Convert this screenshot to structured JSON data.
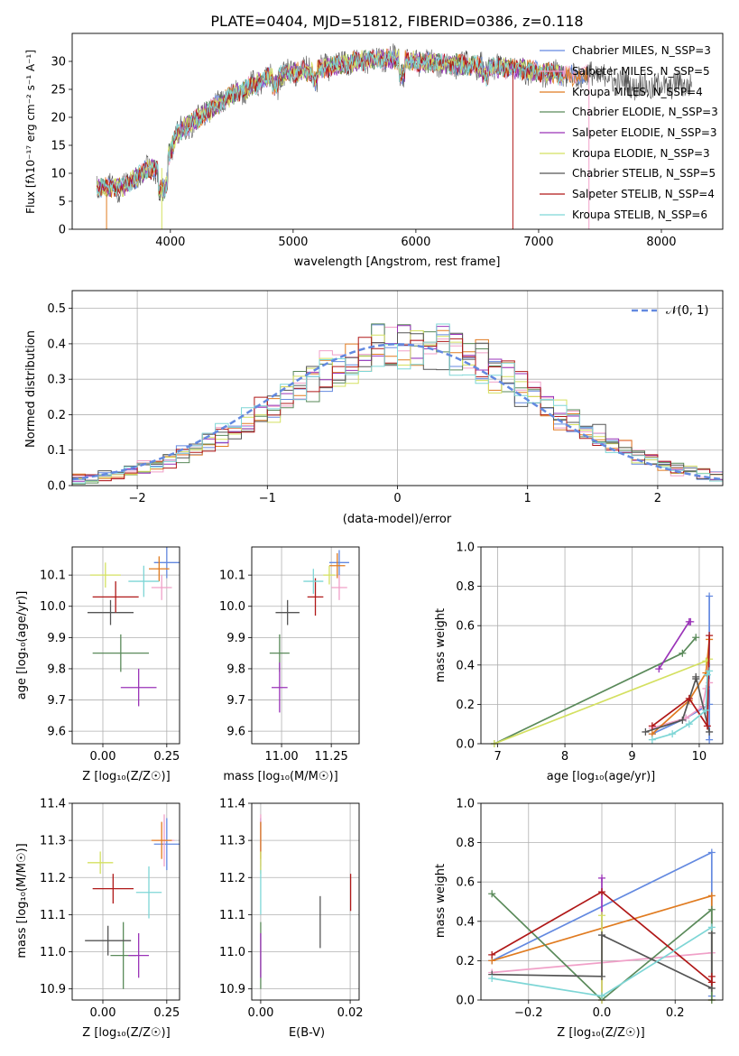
{
  "colors": [
    "#6389e0",
    "#f0a0c8",
    "#e07b20",
    "#5a8a5a",
    "#9a33b8",
    "#d4e060",
    "#555555",
    "#b01818",
    "#7ed6d6"
  ],
  "labels": {
    "title": "PLATE=0404, MJD=51812, FIBERID=0386, z=0.118",
    "spec_xlabel": "wavelength [Angstrom, rest frame]",
    "spec_ylabel": "Flux [fλ10⁻¹⁷ erg cm⁻² s⁻¹ A⁻¹]",
    "res_xlabel": "(data-model)/error",
    "res_ylabel": "Normed distribution",
    "res_legend": "𝒩(0, 1)",
    "age_ylabel": "age  [log₁₀(age/yr)]",
    "z_xlabel": "Z [log₁₀(Z/Z☉)]",
    "mass_xlabel": "mass [log₁₀(M/M☉)]",
    "mass_ylabel": "mass [log₁₀(M/M☉)]",
    "ebv_xlabel": "E(B-V)",
    "mw_ylabel": "mass weight",
    "age_xlabel": "age  [log₁₀(age/yr)]"
  },
  "legend": [
    "Chabrier MILES, N_SSP=3",
    "Salpeter MILES, N_SSP=5",
    "Kroupa MILES, N_SSP=4",
    "Chabrier ELODIE, N_SSP=3",
    "Salpeter ELODIE, N_SSP=3",
    "Kroupa ELODIE, N_SSP=3",
    "Chabrier STELIB, N_SSP=5",
    "Salpeter STELIB, N_SSP=4",
    "Kroupa STELIB, N_SSP=6"
  ],
  "chart_data": [
    {
      "type": "line",
      "panel": "spectrum",
      "title": "PLATE=0404, MJD=51812, FIBERID=0386, z=0.118",
      "xlim": [
        3200,
        8500
      ],
      "ylim": [
        0,
        35
      ],
      "xticks": [
        4000,
        5000,
        6000,
        7000,
        8000
      ],
      "yticks": [
        0,
        5,
        10,
        15,
        20,
        25,
        30
      ],
      "continuum_x": [
        3400,
        3600,
        3800,
        3950,
        4050,
        4300,
        4500,
        4800,
        5000,
        5200,
        5500,
        5800,
        6000,
        6300,
        6600,
        6900,
        7200,
        7500,
        7800,
        8000,
        8250
      ],
      "continuum_y": [
        7.5,
        7.5,
        10.5,
        11,
        17,
        21,
        24,
        27,
        28,
        28.5,
        30,
        30.5,
        30,
        29.5,
        29,
        28.5,
        27.5,
        27.5,
        25.5,
        25.5,
        26
      ],
      "grid": false,
      "legend_position": "right"
    },
    {
      "type": "bar",
      "panel": "residuals",
      "xlim": [
        -2.5,
        2.5
      ],
      "ylim": [
        0,
        0.55
      ],
      "xticks": [
        -2,
        -1,
        0,
        1,
        2
      ],
      "yticks": [
        0.0,
        0.1,
        0.2,
        0.3,
        0.4,
        0.5
      ],
      "bin_width": 0.1,
      "grid": true,
      "legend_position": "top-right"
    },
    {
      "type": "scatter",
      "panel": "age_vs_Z",
      "xlim": [
        -0.12,
        0.3
      ],
      "ylim": [
        9.56,
        10.19
      ],
      "xticks": [
        0.0,
        0.25
      ],
      "yticks": [
        9.6,
        9.7,
        9.8,
        9.9,
        10.0,
        10.1
      ],
      "points": [
        {
          "x": 0.25,
          "y": 10.14,
          "xerr": 0.05,
          "yerr": 0.05
        },
        {
          "x": 0.23,
          "y": 10.06,
          "xerr": 0.04,
          "yerr": 0.04
        },
        {
          "x": 0.22,
          "y": 10.12,
          "xerr": 0.04,
          "yerr": 0.04
        },
        {
          "x": 0.07,
          "y": 9.85,
          "xerr": 0.11,
          "yerr": 0.06
        },
        {
          "x": 0.14,
          "y": 9.74,
          "xerr": 0.07,
          "yerr": 0.06
        },
        {
          "x": 0.01,
          "y": 10.1,
          "xerr": 0.06,
          "yerr": 0.04
        },
        {
          "x": 0.03,
          "y": 9.98,
          "xerr": 0.09,
          "yerr": 0.04
        },
        {
          "x": 0.05,
          "y": 10.03,
          "xerr": 0.09,
          "yerr": 0.05
        },
        {
          "x": 0.16,
          "y": 10.08,
          "xerr": 0.06,
          "yerr": 0.05
        }
      ],
      "grid": true
    },
    {
      "type": "scatter",
      "panel": "age_vs_mass",
      "xlim": [
        10.85,
        11.39
      ],
      "ylim": [
        9.56,
        10.19
      ],
      "xticks": [
        11.0,
        11.25
      ],
      "yticks": [
        9.6,
        9.7,
        9.8,
        9.9,
        10.0,
        10.1
      ],
      "points": [
        {
          "x": 11.29,
          "y": 10.14,
          "xerr": 0.05,
          "yerr": 0.04
        },
        {
          "x": 11.29,
          "y": 10.06,
          "xerr": 0.04,
          "yerr": 0.04
        },
        {
          "x": 11.28,
          "y": 10.13,
          "xerr": 0.04,
          "yerr": 0.04
        },
        {
          "x": 10.99,
          "y": 9.85,
          "xerr": 0.05,
          "yerr": 0.06
        },
        {
          "x": 10.99,
          "y": 9.74,
          "xerr": 0.04,
          "yerr": 0.08
        },
        {
          "x": 11.24,
          "y": 10.1,
          "xerr": 0.03,
          "yerr": 0.03
        },
        {
          "x": 11.03,
          "y": 9.98,
          "xerr": 0.06,
          "yerr": 0.04
        },
        {
          "x": 11.17,
          "y": 10.03,
          "xerr": 0.04,
          "yerr": 0.06
        },
        {
          "x": 11.16,
          "y": 10.08,
          "xerr": 0.05,
          "yerr": 0.04
        }
      ],
      "grid": true
    },
    {
      "type": "line",
      "panel": "massweight_vs_age",
      "xlim": [
        6.75,
        10.35
      ],
      "ylim": [
        0,
        1
      ],
      "xticks": [
        7,
        8,
        9,
        10
      ],
      "yticks": [
        0.0,
        0.2,
        0.4,
        0.6,
        0.8,
        1.0
      ],
      "series": [
        {
          "x": [
            9.3,
            9.8,
            10.15,
            10.15,
            10.15
          ],
          "y": [
            0.05,
            0.13,
            0.2,
            0.75,
            0.02
          ]
        },
        {
          "x": [
            9.3,
            9.8,
            10.05,
            10.1,
            10.15
          ],
          "y": [
            0.08,
            0.13,
            0.19,
            0.28,
            0.31
          ]
        },
        {
          "x": [
            9.3,
            9.85,
            10.1,
            10.15
          ],
          "y": [
            0.05,
            0.22,
            0.36,
            0.53
          ]
        },
        {
          "x": [
            6.95,
            9.75,
            9.95
          ],
          "y": [
            0.0,
            0.46,
            0.54
          ]
        },
        {
          "x": [
            9.4,
            9.85,
            9.87
          ],
          "y": [
            0.38,
            0.62,
            0.62
          ]
        },
        {
          "x": [
            6.95,
            10.1,
            10.15
          ],
          "y": [
            0.0,
            0.42,
            0.43
          ]
        },
        {
          "x": [
            9.2,
            9.75,
            9.95,
            9.95,
            10.15
          ],
          "y": [
            0.06,
            0.12,
            0.33,
            0.34,
            0.06
          ]
        },
        {
          "x": [
            9.3,
            9.85,
            10.12,
            10.15
          ],
          "y": [
            0.09,
            0.23,
            0.09,
            0.55
          ]
        },
        {
          "x": [
            9.3,
            9.6,
            9.85,
            10.1,
            10.12,
            10.15
          ],
          "y": [
            0.02,
            0.05,
            0.1,
            0.17,
            0.35,
            0.37
          ]
        }
      ],
      "grid": true
    },
    {
      "type": "scatter",
      "panel": "mass_vs_Z",
      "xlim": [
        -0.12,
        0.3
      ],
      "ylim": [
        10.87,
        11.4
      ],
      "xticks": [
        0.0,
        0.25
      ],
      "yticks": [
        10.9,
        11.0,
        11.1,
        11.2,
        11.3,
        11.4
      ],
      "points": [
        {
          "x": 0.25,
          "y": 11.29,
          "xerr": 0.05,
          "yerr": 0.07
        },
        {
          "x": 0.24,
          "y": 11.3,
          "xerr": 0.04,
          "yerr": 0.07
        },
        {
          "x": 0.23,
          "y": 11.3,
          "xerr": 0.04,
          "yerr": 0.05
        },
        {
          "x": 0.08,
          "y": 10.99,
          "xerr": 0.05,
          "yerr": 0.09
        },
        {
          "x": 0.14,
          "y": 10.99,
          "xerr": 0.04,
          "yerr": 0.06
        },
        {
          "x": -0.01,
          "y": 11.24,
          "xerr": 0.05,
          "yerr": 0.03
        },
        {
          "x": 0.02,
          "y": 11.03,
          "xerr": 0.09,
          "yerr": 0.04
        },
        {
          "x": 0.04,
          "y": 11.17,
          "xerr": 0.08,
          "yerr": 0.04
        },
        {
          "x": 0.18,
          "y": 11.16,
          "xerr": 0.05,
          "yerr": 0.07
        }
      ],
      "grid": true
    },
    {
      "type": "scatter",
      "panel": "mass_vs_EBV",
      "xlim": [
        -0.002,
        0.022
      ],
      "ylim": [
        10.87,
        11.4
      ],
      "xticks": [
        0.0,
        0.02
      ],
      "yticks": [
        10.9,
        11.0,
        11.1,
        11.2,
        11.3,
        11.4
      ],
      "points": [
        {
          "x": 0.0,
          "y": 11.29,
          "yerr": 0.07
        },
        {
          "x": 0.0,
          "y": 11.3,
          "yerr": 0.07
        },
        {
          "x": 0.0,
          "y": 11.3,
          "yerr": 0.05
        },
        {
          "x": 0.0,
          "y": 10.99,
          "yerr": 0.09
        },
        {
          "x": 0.0,
          "y": 10.99,
          "yerr": 0.06
        },
        {
          "x": 0.0,
          "y": 11.24,
          "yerr": 0.03
        },
        {
          "x": 0.0133,
          "y": 11.08,
          "yerr": 0.07
        },
        {
          "x": 0.0201,
          "y": 11.16,
          "yerr": 0.05
        },
        {
          "x": 0.0,
          "y": 11.16,
          "yerr": 0.06
        }
      ],
      "grid": true
    },
    {
      "type": "line",
      "panel": "massweight_vs_Z",
      "xlim": [
        -0.33,
        0.33
      ],
      "ylim": [
        0,
        1
      ],
      "xticks": [
        -0.2,
        0.0,
        0.2
      ],
      "yticks": [
        0.0,
        0.2,
        0.4,
        0.6,
        0.8,
        1.0
      ],
      "series": [
        {
          "x": [
            -0.3,
            0.3,
            0.3
          ],
          "y": [
            0.2,
            0.75,
            0.02
          ]
        },
        {
          "x": [
            -0.3,
            0.3
          ],
          "y": [
            0.14,
            0.24
          ]
        },
        {
          "x": [
            -0.3,
            0.3,
            0.3
          ],
          "y": [
            0.2,
            0.53,
            0.0
          ]
        },
        {
          "x": [
            -0.3,
            0.0,
            0.3,
            0.3
          ],
          "y": [
            0.54,
            0.0,
            0.46,
            0.0
          ]
        },
        {
          "x": [
            0.0,
            0.0
          ],
          "y": [
            0.0,
            0.62
          ]
        },
        {
          "x": [
            0.0,
            0.0
          ],
          "y": [
            0.0,
            0.43
          ]
        },
        {
          "x": [
            -0.3,
            0.0,
            0.0,
            0.3,
            0.3
          ],
          "y": [
            0.13,
            0.12,
            0.33,
            0.06,
            0.34
          ]
        },
        {
          "x": [
            -0.3,
            0.0,
            0.3,
            0.3
          ],
          "y": [
            0.23,
            0.55,
            0.09,
            0.12
          ]
        },
        {
          "x": [
            -0.3,
            0.0,
            0.3
          ],
          "y": [
            0.11,
            0.02,
            0.37
          ]
        }
      ],
      "grid": true
    }
  ]
}
